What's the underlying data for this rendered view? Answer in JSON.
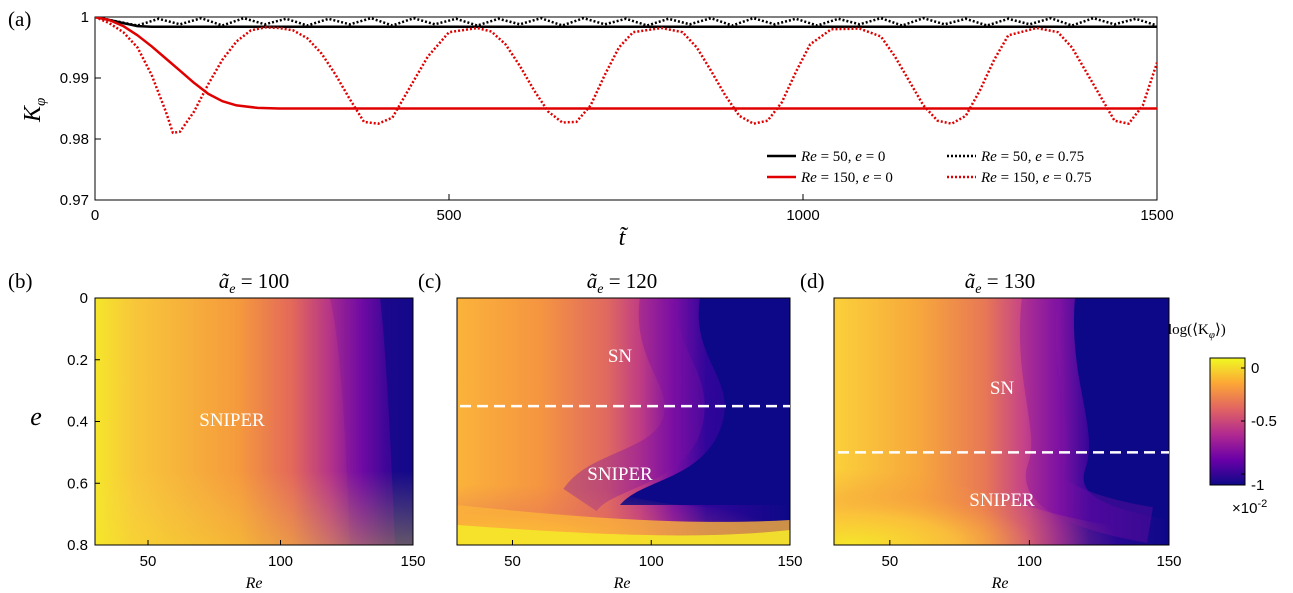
{
  "panels": {
    "a": {
      "label": "(a)",
      "ylabel": "K",
      "ylabel_sub": "φ",
      "xlabel": "t̃"
    },
    "b": {
      "label": "(b)",
      "title": "ã",
      "title_sub": "e",
      "title_rest": " = 100",
      "regions": [
        "SNIPER"
      ]
    },
    "c": {
      "label": "(c)",
      "title": "ã",
      "title_sub": "e",
      "title_rest": " = 120",
      "regions": [
        "SN",
        "SNIPER"
      ]
    },
    "d": {
      "label": "(d)",
      "title": "ã",
      "title_sub": "e",
      "title_rest": " = 130",
      "regions": [
        "SN",
        "SNIPER"
      ]
    }
  },
  "colorbar": {
    "title": "log(⟨K",
    "title_sub": "φ",
    "title_end": "⟩)",
    "ticks": [
      "0",
      "-0.5",
      "-1"
    ],
    "multiplier": "×10",
    "multiplier_exp": "-2",
    "colors": [
      "#0d0887",
      "#6a00a8",
      "#b12a90",
      "#e16462",
      "#fca636",
      "#f0f921"
    ]
  },
  "legend": [
    {
      "label_re": "Re",
      "label_val": " = 50,  ",
      "label_e": "e",
      "label_eval": " = 0",
      "style": "solid",
      "color": "#000000"
    },
    {
      "label_re": "Re",
      "label_val": " = 50,  ",
      "label_e": "e",
      "label_eval": " = 0.75",
      "style": "dotted",
      "color": "#000000"
    },
    {
      "label_re": "Re",
      "label_val": " = 150,  ",
      "label_e": "e",
      "label_eval": " = 0",
      "style": "solid",
      "color": "#e00000"
    },
    {
      "label_re": "Re",
      "label_val": " = 150,  ",
      "label_e": "e",
      "label_eval": " = 0.75",
      "style": "dotted",
      "color": "#e00000"
    }
  ],
  "chart_data": [
    {
      "type": "line",
      "panel": "a",
      "xlim": [
        0,
        1500
      ],
      "ylim": [
        0.97,
        1.0
      ],
      "xticks": [
        "0",
        "500",
        "1000",
        "1500"
      ],
      "yticks": [
        "0.97",
        "0.98",
        "0.99",
        "1"
      ],
      "series": [
        {
          "name": "Re = 50, e = 0",
          "x": [
            0,
            20,
            40,
            60,
            80,
            100,
            1500
          ],
          "y": [
            1.0,
            0.9995,
            0.999,
            0.9985,
            0.9984,
            0.9984,
            0.9984
          ]
        },
        {
          "name": "Re = 50, e = 0.75",
          "x": [
            0,
            30,
            60,
            90,
            120,
            150,
            180,
            210,
            240,
            270,
            300,
            330,
            360,
            390,
            420,
            450,
            480,
            510,
            540,
            570,
            600,
            630,
            660,
            690,
            720,
            750,
            780,
            810,
            840,
            870,
            900,
            930,
            960,
            990,
            1020,
            1050,
            1080,
            1110,
            1140,
            1170,
            1200,
            1230,
            1260,
            1290,
            1320,
            1350,
            1380,
            1410,
            1440,
            1470,
            1500
          ],
          "y": [
            1.0,
            0.9993,
            0.9986,
            0.9997,
            0.9988,
            0.9998,
            0.9986,
            0.9998,
            0.9988,
            0.9997,
            0.9986,
            0.9997,
            0.9988,
            0.9998,
            0.9986,
            0.9998,
            0.9988,
            0.9997,
            0.9986,
            0.9997,
            0.9988,
            0.9998,
            0.9986,
            0.9998,
            0.9988,
            0.9997,
            0.9986,
            0.9997,
            0.9988,
            0.9998,
            0.9986,
            0.9998,
            0.9988,
            0.9997,
            0.9986,
            0.9997,
            0.9988,
            0.9998,
            0.9986,
            0.9998,
            0.9988,
            0.9997,
            0.9986,
            0.9997,
            0.9988,
            0.9998,
            0.9986,
            0.9998,
            0.9988,
            0.9997,
            0.9986
          ]
        },
        {
          "name": "Re = 150, e = 0",
          "x": [
            0,
            20,
            40,
            60,
            80,
            100,
            120,
            140,
            160,
            180,
            200,
            230,
            260,
            1500
          ],
          "y": [
            1.0,
            0.9995,
            0.9985,
            0.997,
            0.9952,
            0.9932,
            0.9912,
            0.9892,
            0.9874,
            0.9862,
            0.9855,
            0.9851,
            0.985,
            0.985
          ]
        },
        {
          "name": "Re = 150, e = 0.75",
          "x": [
            0,
            20,
            40,
            60,
            80,
            100,
            110,
            120,
            140,
            160,
            180,
            200,
            220,
            240,
            260,
            280,
            300,
            320,
            340,
            360,
            380,
            400,
            420,
            440,
            470,
            500,
            540,
            560,
            580,
            600,
            620,
            640,
            660,
            680,
            700,
            720,
            740,
            760,
            800,
            830,
            850,
            870,
            890,
            910,
            930,
            950,
            970,
            990,
            1010,
            1040,
            1080,
            1110,
            1130,
            1150,
            1170,
            1190,
            1210,
            1230,
            1250,
            1270,
            1290,
            1330,
            1360,
            1380,
            1400,
            1420,
            1440,
            1460,
            1480,
            1500
          ],
          "y": [
            1.0,
            0.999,
            0.9975,
            0.995,
            0.9905,
            0.9845,
            0.981,
            0.9812,
            0.9845,
            0.989,
            0.993,
            0.996,
            0.9978,
            0.9983,
            0.9982,
            0.9978,
            0.9965,
            0.994,
            0.9905,
            0.9865,
            0.9828,
            0.9825,
            0.9835,
            0.9875,
            0.9935,
            0.9975,
            0.9982,
            0.9976,
            0.9955,
            0.992,
            0.988,
            0.9845,
            0.9827,
            0.9828,
            0.9855,
            0.9905,
            0.995,
            0.9975,
            0.9982,
            0.9975,
            0.995,
            0.9912,
            0.9872,
            0.9838,
            0.9825,
            0.983,
            0.986,
            0.991,
            0.9955,
            0.998,
            0.9981,
            0.9968,
            0.9935,
            0.9895,
            0.9855,
            0.983,
            0.9825,
            0.9838,
            0.988,
            0.993,
            0.997,
            0.9982,
            0.9975,
            0.995,
            0.991,
            0.987,
            0.983,
            0.9825,
            0.9855,
            0.9925
          ]
        }
      ]
    },
    {
      "type": "heatmap",
      "panel": "b",
      "xlabel": "Re",
      "ylabel": "e",
      "xlim": [
        30,
        150
      ],
      "ylim": [
        0,
        0.8
      ],
      "xticks": [
        "50",
        "100",
        "150"
      ],
      "yticks": [
        "0",
        "0.2",
        "0.4",
        "0.6",
        "0.8"
      ],
      "colorbar_range": [
        -1,
        0
      ],
      "separatrix_e": null
    },
    {
      "type": "heatmap",
      "panel": "c",
      "xlabel": "Re",
      "xlim": [
        30,
        150
      ],
      "ylim": [
        0,
        0.8
      ],
      "xticks": [
        "50",
        "100",
        "150"
      ],
      "colorbar_range": [
        -1,
        0
      ],
      "separatrix_e": 0.35
    },
    {
      "type": "heatmap",
      "panel": "d",
      "xlabel": "Re",
      "xlim": [
        30,
        150
      ],
      "ylim": [
        0,
        0.8
      ],
      "xticks": [
        "50",
        "100",
        "150"
      ],
      "colorbar_range": [
        -1,
        0
      ],
      "separatrix_e": 0.5
    }
  ]
}
